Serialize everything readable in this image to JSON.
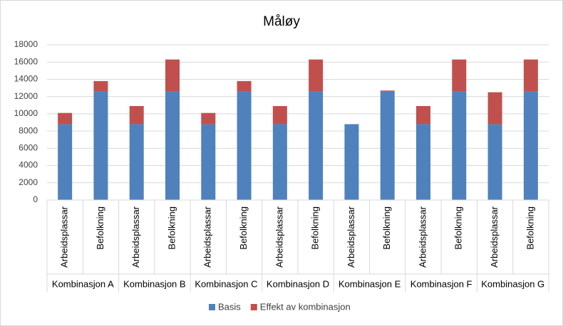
{
  "chart_data": {
    "type": "stacked-bar",
    "title": "Måløy",
    "categories": [
      "Arbeidsplassar",
      "Befolkning",
      "Arbeidsplassar",
      "Befolkning",
      "Arbeidsplassar",
      "Befolkning",
      "Arbeidsplassar",
      "Befolkning",
      "Arbeidsplassar",
      "Befolkning",
      "Arbeidsplassar",
      "Befolkning",
      "Arbeidsplassar",
      "Befolkning"
    ],
    "category_groups": [
      "Kombinasjon A",
      "Kombinasjon B",
      "Kombinasjon C",
      "Kombinasjon D",
      "Kombinasjon E",
      "Kombinasjon F",
      "Kombinasjon G"
    ],
    "series": [
      {
        "name": "Basis",
        "color": "#4f81bd",
        "values": [
          8800,
          12600,
          8800,
          12600,
          8800,
          12600,
          8800,
          12600,
          8800,
          12600,
          8800,
          12600,
          8800,
          12600
        ]
      },
      {
        "name": "Effekt av kombinasjon",
        "color": "#c0504d",
        "values": [
          1300,
          1200,
          2100,
          3700,
          1300,
          1200,
          2100,
          3700,
          0,
          100,
          2100,
          3700,
          3700,
          3700
        ]
      }
    ],
    "ylim": [
      0,
      18000
    ],
    "yticks": [
      0,
      2000,
      4000,
      6000,
      8000,
      10000,
      12000,
      14000,
      16000,
      18000
    ],
    "grid": true,
    "legend": "bottom"
  }
}
